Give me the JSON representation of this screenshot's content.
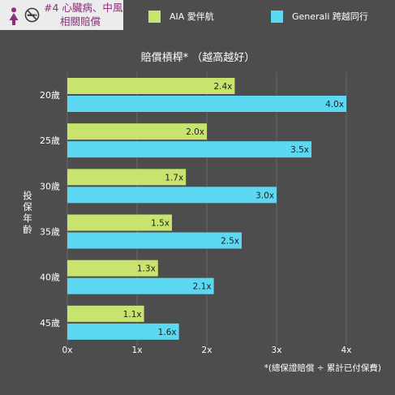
{
  "badge": {
    "line1": "#4 心臟病、中風",
    "line2": "相關賠償"
  },
  "colors": {
    "aia": "#c9e36f",
    "generali": "#5cd8f2",
    "badge_text": "#8a2f78",
    "background": "#4d4d4d"
  },
  "chart_data": {
    "type": "bar",
    "orientation": "horizontal",
    "title": "賠償槓桿*  （越高越好）",
    "ylabel": "投保年齡",
    "xlabel": "",
    "categories": [
      "20歲",
      "25歲",
      "30歲",
      "35歲",
      "40歲",
      "45歲"
    ],
    "series": [
      {
        "name": "AIA 愛伴航",
        "values": [
          2.4,
          2.0,
          1.7,
          1.5,
          1.3,
          1.1
        ],
        "labels": [
          "2.4x",
          "2.0x",
          "1.7x",
          "1.5x",
          "1.3x",
          "1.1x"
        ]
      },
      {
        "name": "Generali 跨越同行",
        "values": [
          4.0,
          3.5,
          3.0,
          2.5,
          2.1,
          1.6
        ],
        "labels": [
          "4.0x",
          "3.5x",
          "3.0x",
          "2.5x",
          "2.1x",
          "1.6x"
        ]
      }
    ],
    "xticks": [
      "0x",
      "1x",
      "2x",
      "3x",
      "4x"
    ],
    "xlim": [
      0,
      4
    ],
    "grid": "vertical",
    "legend_position": "top",
    "footnote": "*(總保證賠償 ÷ 累計已付保費)"
  }
}
